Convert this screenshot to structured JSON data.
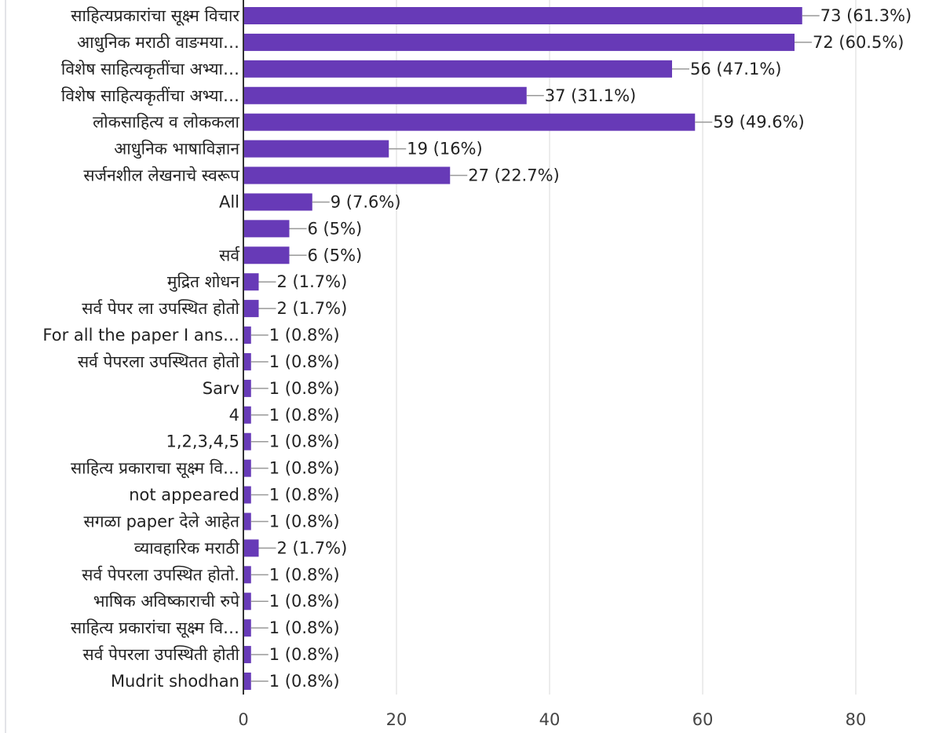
{
  "chart_data": {
    "type": "bar",
    "orientation": "horizontal",
    "categories": [
      "साहित्यप्रकारांचा सूक्ष्म विचार",
      "आधुनिक मराठी वाङमया…",
      "विशेष साहित्यकृतींचा अभ्या…",
      "विशेष साहित्यकृतींचा अभ्या…",
      "लोकसाहित्य व लोककला",
      "आधुनिक भाषाविज्ञान",
      "सर्जनशील लेखनाचे स्वरूप",
      "All",
      null,
      "सर्व",
      "मुद्रित शोधन",
      "सर्व पेपर ला उपस्थित होतो",
      "For all the paper I ans…",
      "सर्व पेपरला उपस्थितत होतो",
      "Sarv",
      "4",
      "1,2,3,4,5",
      "साहित्य प्रकाराचा सूक्ष्म वि…",
      "not appeared",
      "सगळा paper देले आहेत",
      "व्यावहारिक मराठी",
      "सर्व पेपरला उपस्थित होतो.",
      "भाषिक अविष्काराची रुपे",
      "साहित्य प्रकारांचा सूक्ष्म वि…",
      "सर्व पेपरला उपस्थिती होती",
      "Mudrit shodhan"
    ],
    "values": [
      73,
      72,
      56,
      37,
      59,
      19,
      27,
      9,
      6,
      6,
      2,
      2,
      1,
      1,
      1,
      1,
      1,
      1,
      1,
      1,
      2,
      1,
      1,
      1,
      1,
      1
    ],
    "value_labels": [
      "73 (61.3%)",
      "72 (60.5%)",
      "56 (47.1%)",
      "37 (31.1%)",
      "59 (49.6%)",
      "19 (16%)",
      "27 (22.7%)",
      "9 (7.6%)",
      "6 (5%)",
      "6 (5%)",
      "2 (1.7%)",
      "2 (1.7%)",
      "1 (0.8%)",
      "1 (0.8%)",
      "1 (0.8%)",
      "1 (0.8%)",
      "1 (0.8%)",
      "1 (0.8%)",
      "1 (0.8%)",
      "1 (0.8%)",
      "2 (1.7%)",
      "1 (0.8%)",
      "1 (0.8%)",
      "1 (0.8%)",
      "1 (0.8%)",
      "1 (0.8%)"
    ],
    "color": "#673ab7",
    "xlim": [
      0,
      80
    ],
    "xticks": [
      0,
      20,
      40,
      60,
      80
    ],
    "grid": true
  }
}
